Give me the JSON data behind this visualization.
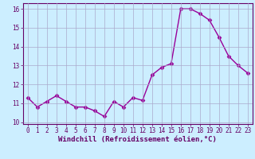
{
  "x": [
    0,
    1,
    2,
    3,
    4,
    5,
    6,
    7,
    8,
    9,
    10,
    11,
    12,
    13,
    14,
    15,
    16,
    17,
    18,
    19,
    20,
    21,
    22,
    23
  ],
  "y": [
    11.3,
    10.8,
    11.1,
    11.4,
    11.1,
    10.8,
    10.8,
    10.6,
    10.3,
    11.1,
    10.8,
    11.3,
    11.15,
    12.5,
    12.9,
    13.1,
    16.0,
    16.0,
    15.75,
    15.4,
    14.5,
    13.5,
    13.0,
    12.6
  ],
  "line_color": "#990099",
  "marker": "D",
  "marker_size": 2.5,
  "xlabel": "Windchill (Refroidissement éolien,°C)",
  "xlim": [
    -0.5,
    23.5
  ],
  "ylim": [
    9.9,
    16.3
  ],
  "yticks": [
    10,
    11,
    12,
    13,
    14,
    15,
    16
  ],
  "xticks": [
    0,
    1,
    2,
    3,
    4,
    5,
    6,
    7,
    8,
    9,
    10,
    11,
    12,
    13,
    14,
    15,
    16,
    17,
    18,
    19,
    20,
    21,
    22,
    23
  ],
  "bg_color": "#cceeff",
  "grid_color": "#aaaacc",
  "text_color": "#660066",
  "tick_fontsize": 5.5,
  "xlabel_fontsize": 6.5,
  "linewidth": 1.0
}
